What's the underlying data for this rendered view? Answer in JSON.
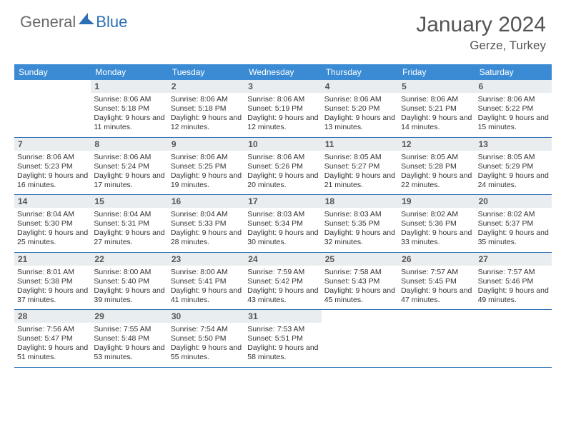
{
  "logo": {
    "text1": "General",
    "text2": "Blue"
  },
  "title": "January 2024",
  "location": "Gerze, Turkey",
  "colors": {
    "header_bg": "#3b8bd4",
    "border": "#2b6fb5",
    "daynum_bg": "#e9edef",
    "logo_gray": "#6a6a6a",
    "logo_blue": "#2b6fb5"
  },
  "weekdays": [
    "Sunday",
    "Monday",
    "Tuesday",
    "Wednesday",
    "Thursday",
    "Friday",
    "Saturday"
  ],
  "weeks": [
    [
      null,
      {
        "n": "1",
        "sr": "8:06 AM",
        "ss": "5:18 PM",
        "dl": "9 hours and 11 minutes."
      },
      {
        "n": "2",
        "sr": "8:06 AM",
        "ss": "5:18 PM",
        "dl": "9 hours and 12 minutes."
      },
      {
        "n": "3",
        "sr": "8:06 AM",
        "ss": "5:19 PM",
        "dl": "9 hours and 12 minutes."
      },
      {
        "n": "4",
        "sr": "8:06 AM",
        "ss": "5:20 PM",
        "dl": "9 hours and 13 minutes."
      },
      {
        "n": "5",
        "sr": "8:06 AM",
        "ss": "5:21 PM",
        "dl": "9 hours and 14 minutes."
      },
      {
        "n": "6",
        "sr": "8:06 AM",
        "ss": "5:22 PM",
        "dl": "9 hours and 15 minutes."
      }
    ],
    [
      {
        "n": "7",
        "sr": "8:06 AM",
        "ss": "5:23 PM",
        "dl": "9 hours and 16 minutes."
      },
      {
        "n": "8",
        "sr": "8:06 AM",
        "ss": "5:24 PM",
        "dl": "9 hours and 17 minutes."
      },
      {
        "n": "9",
        "sr": "8:06 AM",
        "ss": "5:25 PM",
        "dl": "9 hours and 19 minutes."
      },
      {
        "n": "10",
        "sr": "8:06 AM",
        "ss": "5:26 PM",
        "dl": "9 hours and 20 minutes."
      },
      {
        "n": "11",
        "sr": "8:05 AM",
        "ss": "5:27 PM",
        "dl": "9 hours and 21 minutes."
      },
      {
        "n": "12",
        "sr": "8:05 AM",
        "ss": "5:28 PM",
        "dl": "9 hours and 22 minutes."
      },
      {
        "n": "13",
        "sr": "8:05 AM",
        "ss": "5:29 PM",
        "dl": "9 hours and 24 minutes."
      }
    ],
    [
      {
        "n": "14",
        "sr": "8:04 AM",
        "ss": "5:30 PM",
        "dl": "9 hours and 25 minutes."
      },
      {
        "n": "15",
        "sr": "8:04 AM",
        "ss": "5:31 PM",
        "dl": "9 hours and 27 minutes."
      },
      {
        "n": "16",
        "sr": "8:04 AM",
        "ss": "5:33 PM",
        "dl": "9 hours and 28 minutes."
      },
      {
        "n": "17",
        "sr": "8:03 AM",
        "ss": "5:34 PM",
        "dl": "9 hours and 30 minutes."
      },
      {
        "n": "18",
        "sr": "8:03 AM",
        "ss": "5:35 PM",
        "dl": "9 hours and 32 minutes."
      },
      {
        "n": "19",
        "sr": "8:02 AM",
        "ss": "5:36 PM",
        "dl": "9 hours and 33 minutes."
      },
      {
        "n": "20",
        "sr": "8:02 AM",
        "ss": "5:37 PM",
        "dl": "9 hours and 35 minutes."
      }
    ],
    [
      {
        "n": "21",
        "sr": "8:01 AM",
        "ss": "5:38 PM",
        "dl": "9 hours and 37 minutes."
      },
      {
        "n": "22",
        "sr": "8:00 AM",
        "ss": "5:40 PM",
        "dl": "9 hours and 39 minutes."
      },
      {
        "n": "23",
        "sr": "8:00 AM",
        "ss": "5:41 PM",
        "dl": "9 hours and 41 minutes."
      },
      {
        "n": "24",
        "sr": "7:59 AM",
        "ss": "5:42 PM",
        "dl": "9 hours and 43 minutes."
      },
      {
        "n": "25",
        "sr": "7:58 AM",
        "ss": "5:43 PM",
        "dl": "9 hours and 45 minutes."
      },
      {
        "n": "26",
        "sr": "7:57 AM",
        "ss": "5:45 PM",
        "dl": "9 hours and 47 minutes."
      },
      {
        "n": "27",
        "sr": "7:57 AM",
        "ss": "5:46 PM",
        "dl": "9 hours and 49 minutes."
      }
    ],
    [
      {
        "n": "28",
        "sr": "7:56 AM",
        "ss": "5:47 PM",
        "dl": "9 hours and 51 minutes."
      },
      {
        "n": "29",
        "sr": "7:55 AM",
        "ss": "5:48 PM",
        "dl": "9 hours and 53 minutes."
      },
      {
        "n": "30",
        "sr": "7:54 AM",
        "ss": "5:50 PM",
        "dl": "9 hours and 55 minutes."
      },
      {
        "n": "31",
        "sr": "7:53 AM",
        "ss": "5:51 PM",
        "dl": "9 hours and 58 minutes."
      },
      null,
      null,
      null
    ]
  ],
  "labels": {
    "sunrise": "Sunrise: ",
    "sunset": "Sunset: ",
    "daylight": "Daylight: "
  }
}
